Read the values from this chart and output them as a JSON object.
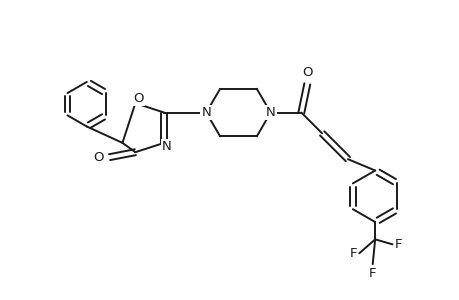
{
  "bg_color": "#ffffff",
  "line_color": "#1a1a1a",
  "line_width": 1.4,
  "dbo": 0.06,
  "font_size": 9.5,
  "fig_width": 4.6,
  "fig_height": 3.0,
  "dpi": 100,
  "xlim": [
    0,
    9.2
  ],
  "ylim": [
    0,
    6.0
  ]
}
